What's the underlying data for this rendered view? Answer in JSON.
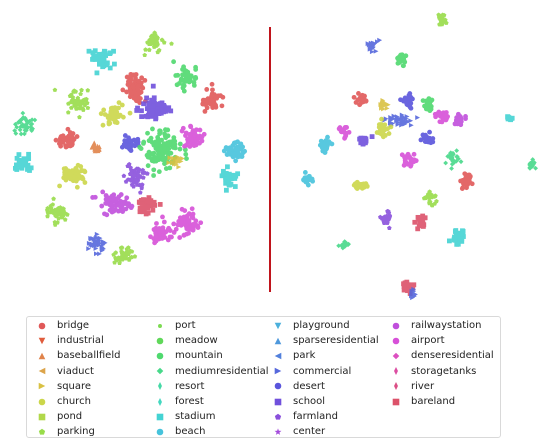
{
  "chart_data": {
    "type": "scatter",
    "title": "",
    "xlabel": "",
    "ylabel": "",
    "grid": false,
    "axes_visible": false,
    "legend_position": "bottom",
    "divider_color": "#c0141c",
    "panels": [
      {
        "name": "",
        "clusters": [
          {
            "series": "parking",
            "x": 154,
            "y": 42,
            "spread": [
              10,
              10
            ],
            "n": 45
          },
          {
            "series": "stadium",
            "x": 100,
            "y": 58,
            "spread": [
              13,
              10
            ],
            "n": 55
          },
          {
            "series": "bridge",
            "x": 135,
            "y": 87,
            "spread": [
              12,
              17
            ],
            "n": 70
          },
          {
            "series": "mountain",
            "x": 187,
            "y": 79,
            "spread": [
              11,
              11
            ],
            "n": 45
          },
          {
            "series": "parking",
            "x": 78,
            "y": 102,
            "spread": [
              12,
              11
            ],
            "n": 50
          },
          {
            "series": "mediumresidential",
            "x": 26,
            "y": 125,
            "spread": [
              12,
              10
            ],
            "n": 45
          },
          {
            "series": "church",
            "x": 113,
            "y": 114,
            "spread": [
              12,
              11
            ],
            "n": 45
          },
          {
            "series": "school",
            "x": 155,
            "y": 108,
            "spread": [
              17,
              12
            ],
            "n": 70
          },
          {
            "series": "bridge",
            "x": 212,
            "y": 100,
            "spread": [
              12,
              11
            ],
            "n": 50
          },
          {
            "series": "bridge",
            "x": 67,
            "y": 140,
            "spread": [
              10,
              10
            ],
            "n": 45
          },
          {
            "series": "baseballfield",
            "x": 96,
            "y": 148,
            "spread": [
              6,
              6
            ],
            "n": 20
          },
          {
            "series": "desert",
            "x": 130,
            "y": 145,
            "spread": [
              8,
              8
            ],
            "n": 35
          },
          {
            "series": "mountain",
            "x": 162,
            "y": 150,
            "spread": [
              20,
              20
            ],
            "n": 120
          },
          {
            "series": "airport",
            "x": 193,
            "y": 137,
            "spread": [
              10,
              12
            ],
            "n": 45
          },
          {
            "series": "beach",
            "x": 234,
            "y": 151,
            "spread": [
              11,
              11
            ],
            "n": 45
          },
          {
            "series": "stadium",
            "x": 23,
            "y": 164,
            "spread": [
              8,
              8
            ],
            "n": 30
          },
          {
            "series": "square",
            "x": 177,
            "y": 160,
            "spread": [
              8,
              6
            ],
            "n": 25
          },
          {
            "series": "farmland",
            "x": 136,
            "y": 177,
            "spread": [
              12,
              12
            ],
            "n": 55
          },
          {
            "series": "church",
            "x": 73,
            "y": 175,
            "spread": [
              15,
              10
            ],
            "n": 55
          },
          {
            "series": "stadium",
            "x": 229,
            "y": 178,
            "spread": [
              9,
              9
            ],
            "n": 35
          },
          {
            "series": "railwaystation",
            "x": 115,
            "y": 203,
            "spread": [
              17,
              11
            ],
            "n": 65
          },
          {
            "series": "bareland",
            "x": 148,
            "y": 205,
            "spread": [
              10,
              10
            ],
            "n": 40
          },
          {
            "series": "airport",
            "x": 187,
            "y": 223,
            "spread": [
              12,
              14
            ],
            "n": 55
          },
          {
            "series": "parking",
            "x": 57,
            "y": 212,
            "spread": [
              12,
              10
            ],
            "n": 45
          },
          {
            "series": "airport",
            "x": 161,
            "y": 234,
            "spread": [
              10,
              12
            ],
            "n": 45
          },
          {
            "series": "commercial",
            "x": 98,
            "y": 244,
            "spread": [
              10,
              10
            ],
            "n": 40
          },
          {
            "series": "parking",
            "x": 123,
            "y": 256,
            "spread": [
              10,
              9
            ],
            "n": 40
          }
        ]
      },
      {
        "name": "",
        "clusters": [
          {
            "series": "parking",
            "x": 441,
            "y": 21,
            "spread": [
              5,
              7
            ],
            "n": 20
          },
          {
            "series": "commercial",
            "x": 373,
            "y": 46,
            "spread": [
              8,
              6
            ],
            "n": 25
          },
          {
            "series": "mountain",
            "x": 401,
            "y": 59,
            "spread": [
              6,
              8
            ],
            "n": 25
          },
          {
            "series": "bridge",
            "x": 361,
            "y": 99,
            "spread": [
              6,
              6
            ],
            "n": 20
          },
          {
            "series": "square",
            "x": 384,
            "y": 104,
            "spread": [
              6,
              5
            ],
            "n": 15
          },
          {
            "series": "desert",
            "x": 408,
            "y": 101,
            "spread": [
              8,
              8
            ],
            "n": 25
          },
          {
            "series": "mountain",
            "x": 429,
            "y": 104,
            "spread": [
              8,
              8
            ],
            "n": 25
          },
          {
            "series": "airport",
            "x": 442,
            "y": 116,
            "spread": [
              8,
              6
            ],
            "n": 25
          },
          {
            "series": "railwaystation",
            "x": 461,
            "y": 121,
            "spread": [
              7,
              5
            ],
            "n": 20
          },
          {
            "series": "stadium",
            "x": 510,
            "y": 118,
            "spread": [
              4,
              4
            ],
            "n": 12
          },
          {
            "series": "commercial",
            "x": 400,
            "y": 121,
            "spread": [
              14,
              6
            ],
            "n": 40
          },
          {
            "series": "airport",
            "x": 344,
            "y": 131,
            "spread": [
              6,
              6
            ],
            "n": 20
          },
          {
            "series": "church",
            "x": 383,
            "y": 131,
            "spread": [
              6,
              9
            ],
            "n": 25
          },
          {
            "series": "school",
            "x": 365,
            "y": 140,
            "spread": [
              6,
              6
            ],
            "n": 20
          },
          {
            "series": "beach",
            "x": 326,
            "y": 145,
            "spread": [
              7,
              8
            ],
            "n": 25
          },
          {
            "series": "desert",
            "x": 428,
            "y": 138,
            "spread": [
              6,
              6
            ],
            "n": 20
          },
          {
            "series": "airport",
            "x": 408,
            "y": 160,
            "spread": [
              8,
              7
            ],
            "n": 25
          },
          {
            "series": "mediumresidential",
            "x": 453,
            "y": 158,
            "spread": [
              7,
              7
            ],
            "n": 25
          },
          {
            "series": "mediumresidential",
            "x": 532,
            "y": 165,
            "spread": [
              4,
              7
            ],
            "n": 15
          },
          {
            "series": "beach",
            "x": 308,
            "y": 179,
            "spread": [
              6,
              6
            ],
            "n": 20
          },
          {
            "series": "church",
            "x": 362,
            "y": 186,
            "spread": [
              8,
              4
            ],
            "n": 25
          },
          {
            "series": "bridge",
            "x": 466,
            "y": 180,
            "spread": [
              6,
              8
            ],
            "n": 25
          },
          {
            "series": "parking",
            "x": 431,
            "y": 197,
            "spread": [
              7,
              7
            ],
            "n": 25
          },
          {
            "series": "farmland",
            "x": 386,
            "y": 219,
            "spread": [
              6,
              8
            ],
            "n": 25
          },
          {
            "series": "bareland",
            "x": 421,
            "y": 221,
            "spread": [
              5,
              9
            ],
            "n": 25
          },
          {
            "series": "stadium",
            "x": 458,
            "y": 238,
            "spread": [
              6,
              8
            ],
            "n": 25
          },
          {
            "series": "mediumresidential",
            "x": 345,
            "y": 244,
            "spread": [
              5,
              4
            ],
            "n": 15
          },
          {
            "series": "bareland",
            "x": 408,
            "y": 287,
            "spread": [
              6,
              7
            ],
            "n": 25
          },
          {
            "series": "commercial",
            "x": 413,
            "y": 294,
            "spread": [
              4,
              5
            ],
            "n": 15
          }
        ]
      }
    ],
    "legend": [
      {
        "label": "bridge",
        "color": "#e05858",
        "marker": "circle"
      },
      {
        "label": "industrial",
        "color": "#e05c3c",
        "marker": "triangle-down"
      },
      {
        "label": "baseballfield",
        "color": "#e0834a",
        "marker": "triangle-up"
      },
      {
        "label": "viaduct",
        "color": "#dca44a",
        "marker": "triangle-left"
      },
      {
        "label": "square",
        "color": "#d9c143",
        "marker": "triangle-right"
      },
      {
        "label": "church",
        "color": "#cbd64a",
        "marker": "circle"
      },
      {
        "label": "pond",
        "color": "#b1d84a",
        "marker": "square"
      },
      {
        "label": "parking",
        "color": "#98dc4a",
        "marker": "pentagon"
      },
      {
        "label": "port",
        "color": "#7cdb52",
        "marker": "small-circle"
      },
      {
        "label": "meadow",
        "color": "#60d85a",
        "marker": "circle"
      },
      {
        "label": "mountain",
        "color": "#4fd96e",
        "marker": "circle"
      },
      {
        "label": "mediumresidential",
        "color": "#48d98a",
        "marker": "diamond"
      },
      {
        "label": "resort",
        "color": "#46d9a6",
        "marker": "thin-diamond"
      },
      {
        "label": "forest",
        "color": "#44d8c0",
        "marker": "thin-diamond"
      },
      {
        "label": "stadium",
        "color": "#44d3d3",
        "marker": "x-square"
      },
      {
        "label": "beach",
        "color": "#46c3dc",
        "marker": "circle"
      },
      {
        "label": "playground",
        "color": "#4bb0dc",
        "marker": "triangle-down"
      },
      {
        "label": "sparseresidential",
        "color": "#4e98dc",
        "marker": "triangle-up"
      },
      {
        "label": "park",
        "color": "#5280dc",
        "marker": "triangle-left"
      },
      {
        "label": "commercial",
        "color": "#5668dc",
        "marker": "triangle-right"
      },
      {
        "label": "desert",
        "color": "#5a55dc",
        "marker": "circle"
      },
      {
        "label": "school",
        "color": "#7050dc",
        "marker": "square"
      },
      {
        "label": "farmland",
        "color": "#8a50dc",
        "marker": "pentagon"
      },
      {
        "label": "center",
        "color": "#a44ddc",
        "marker": "star"
      },
      {
        "label": "railwaystation",
        "color": "#c04fdc",
        "marker": "circle"
      },
      {
        "label": "airport",
        "color": "#d750d8",
        "marker": "circle"
      },
      {
        "label": "denseresidential",
        "color": "#dc4fc0",
        "marker": "diamond"
      },
      {
        "label": "storagetanks",
        "color": "#dc4ea2",
        "marker": "thin-diamond"
      },
      {
        "label": "river",
        "color": "#dc4f86",
        "marker": "thin-diamond"
      },
      {
        "label": "bareland",
        "color": "#dc526a",
        "marker": "square"
      }
    ]
  }
}
